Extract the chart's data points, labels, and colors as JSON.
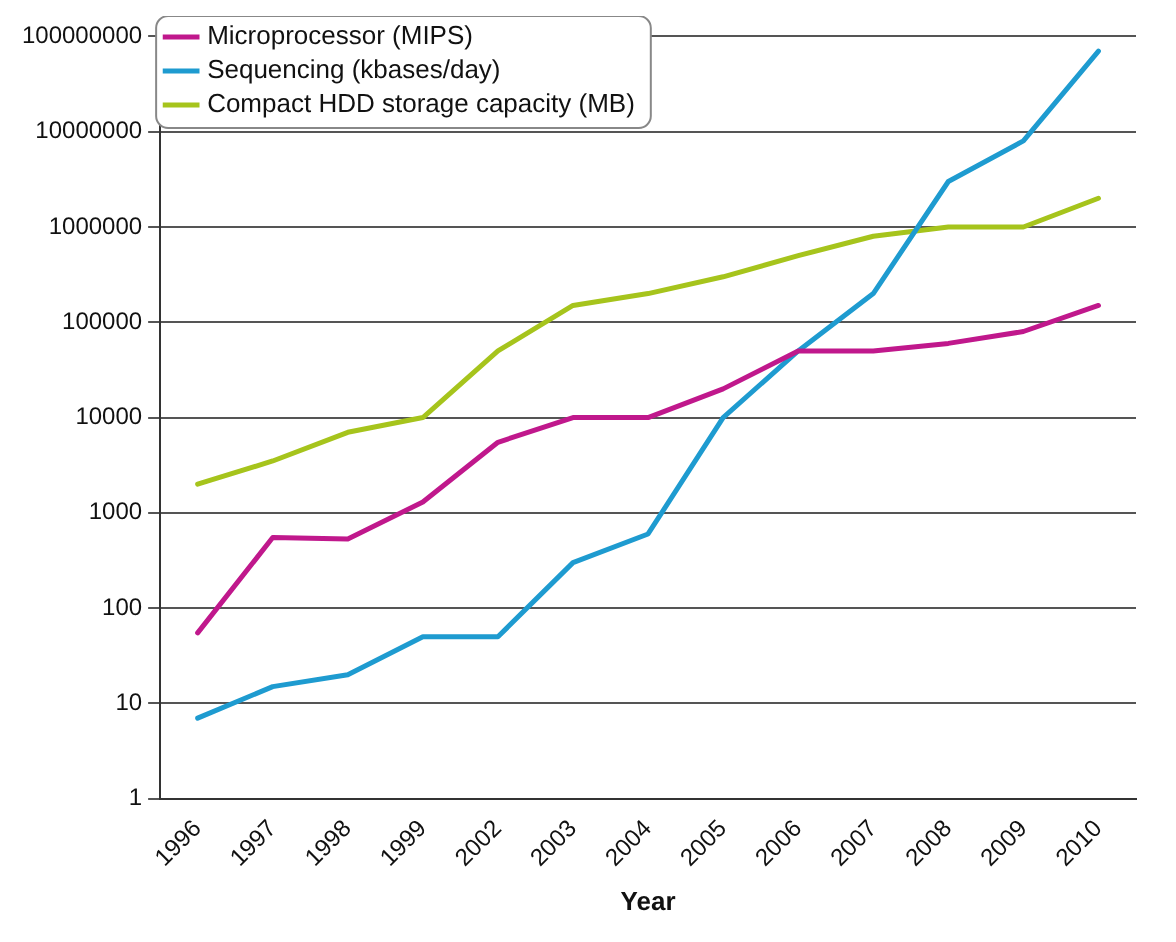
{
  "chart_data": {
    "type": "line",
    "xlabel": "Year",
    "categories": [
      "1996",
      "1997",
      "1998",
      "1999",
      "2002",
      "2003",
      "2004",
      "2005",
      "2006",
      "2007",
      "2008",
      "2009",
      "2010"
    ],
    "series": [
      {
        "name": "Microprocessor (MIPS)",
        "color": "#c0188c",
        "values": [
          55,
          550,
          530,
          1300,
          5500,
          10000,
          10000,
          20000,
          50000,
          50000,
          60000,
          80000,
          150000
        ]
      },
      {
        "name": "Sequencing (kbases/day)",
        "color": "#1e9bd0",
        "values": [
          7,
          15,
          20,
          50,
          50,
          300,
          600,
          10000,
          50000,
          200000,
          3000000,
          8000000,
          70000000
        ]
      },
      {
        "name": "Compact HDD storage capacity (MB)",
        "color": "#a6c41c",
        "values": [
          2000,
          3500,
          7000,
          10000,
          50000,
          150000,
          200000,
          300000,
          500000,
          800000,
          1000000,
          1000000,
          2000000
        ]
      }
    ],
    "log": "y",
    "ylim": [
      1,
      100000000
    ],
    "yticks": [
      1,
      10,
      100,
      1000,
      10000,
      100000,
      1000000,
      10000000,
      100000000
    ],
    "grid": "y",
    "legend": "top left",
    "marker": "none",
    "line_style": "solid"
  }
}
